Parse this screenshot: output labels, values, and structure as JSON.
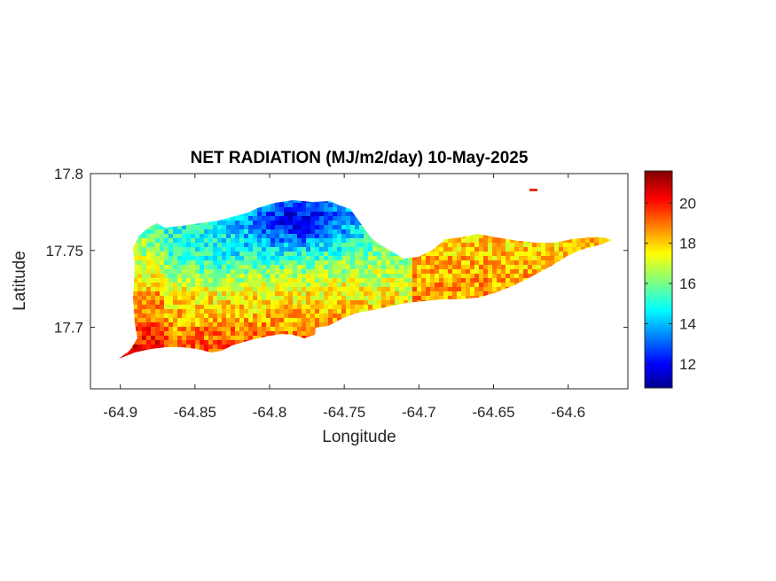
{
  "title": "NET RADIATION (MJ/m2/day) 10-May-2025",
  "xlabel": "Longitude",
  "ylabel": "Latitude",
  "x_ticks": [
    "-64.9",
    "-64.85",
    "-64.8",
    "-64.75",
    "-64.7",
    "-64.65",
    "-64.6"
  ],
  "y_ticks": [
    "17.8",
    "17.75",
    "17.7"
  ],
  "colorbar_ticks": [
    "20",
    "18",
    "16",
    "14",
    "12"
  ],
  "chart_data": {
    "type": "heatmap",
    "title": "NET RADIATION (MJ/m2/day) 10-May-2025",
    "xlabel": "Longitude",
    "ylabel": "Latitude",
    "xlim": [
      -64.92,
      -64.56
    ],
    "ylim": [
      17.66,
      17.8
    ],
    "x_tick_values": [
      -64.9,
      -64.85,
      -64.8,
      -64.75,
      -64.7,
      -64.65,
      -64.6
    ],
    "y_tick_values": [
      17.8,
      17.75,
      17.7
    ],
    "colorbar": {
      "range": [
        10.8,
        21.6
      ],
      "tick_values": [
        20,
        18,
        16,
        14,
        12
      ],
      "colormap": "jet"
    },
    "value_regions": [
      {
        "area": "north-central highlands (around -64.8, 17.77)",
        "approx_value": 13
      },
      {
        "area": "central interior",
        "approx_value": 16
      },
      {
        "area": "southern coast",
        "approx_value": 19.5
      },
      {
        "area": "southwest corner",
        "approx_value": 20
      },
      {
        "area": "eastern end",
        "approx_value": 18.5
      }
    ]
  },
  "colors": {
    "jet_stops": [
      "#00008f",
      "#0000ff",
      "#00ffff",
      "#ffff00",
      "#ff0000",
      "#800000"
    ]
  }
}
